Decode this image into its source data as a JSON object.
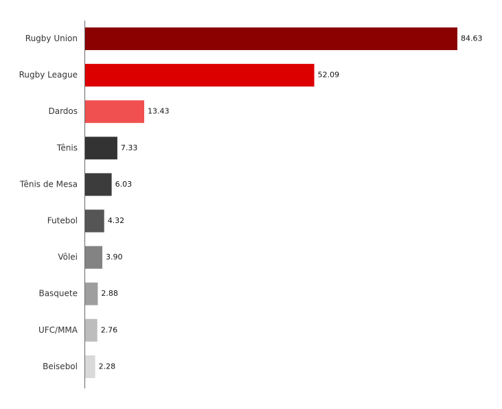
{
  "chart_data": {
    "type": "bar",
    "orientation": "horizontal",
    "title": "",
    "xlabel": "",
    "ylabel": "",
    "xlim": [
      0,
      84.63
    ],
    "grid": false,
    "legend": "none",
    "categories": [
      "Rugby Union",
      "Rugby League",
      "Dardos",
      "Tênis",
      "Tênis de Mesa",
      "Futebol",
      "Vôlei",
      "Basquete",
      "UFC/MMA",
      "Beisebol"
    ],
    "values": [
      84.63,
      52.09,
      13.43,
      7.33,
      6.03,
      4.32,
      3.9,
      2.88,
      2.76,
      2.28
    ],
    "value_labels": [
      "84.63",
      "52.09",
      "13.43",
      "7.33",
      "6.03",
      "4.32",
      "3.90",
      "2.88",
      "2.76",
      "2.28"
    ],
    "colors": [
      "#8b0000",
      "#dd0000",
      "#f05050",
      "#333333",
      "#3c3c3c",
      "#555555",
      "#838383",
      "#9e9e9e",
      "#bdbdbd",
      "#d9d9d9"
    ]
  }
}
